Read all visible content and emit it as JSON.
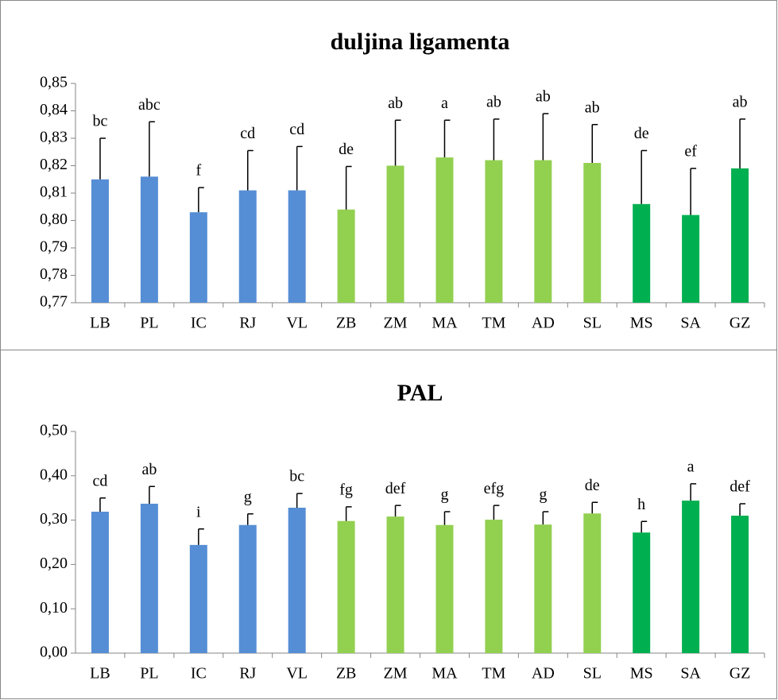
{
  "chart_data": [
    {
      "type": "bar",
      "title": "duljina ligamenta",
      "categories": [
        "LB",
        "PL",
        "IC",
        "RJ",
        "VL",
        "ZB",
        "ZM",
        "MA",
        "TM",
        "AD",
        "SL",
        "MS",
        "SA",
        "GZ"
      ],
      "values": [
        0.815,
        0.816,
        0.803,
        0.811,
        0.811,
        0.804,
        0.82,
        0.823,
        0.822,
        0.822,
        0.821,
        0.806,
        0.802,
        0.819
      ],
      "errors": [
        0.015,
        0.02,
        0.009,
        0.0145,
        0.016,
        0.0157,
        0.0166,
        0.0136,
        0.015,
        0.017,
        0.014,
        0.0195,
        0.017,
        0.018
      ],
      "letters": [
        "bc",
        "abc",
        "f",
        "cd",
        "cd",
        "de",
        "ab",
        "a",
        "ab",
        "ab",
        "ab",
        "de",
        "ef",
        "ab"
      ],
      "colors": [
        "#558ed5",
        "#558ed5",
        "#558ed5",
        "#558ed5",
        "#558ed5",
        "#92d050",
        "#92d050",
        "#92d050",
        "#92d050",
        "#92d050",
        "#92d050",
        "#00b050",
        "#00b050",
        "#00b050"
      ],
      "ylim": [
        0.77,
        0.85
      ],
      "yticks": [
        {
          "value": 0.77,
          "label": "0,77"
        },
        {
          "value": 0.78,
          "label": "0,78"
        },
        {
          "value": 0.79,
          "label": "0,79"
        },
        {
          "value": 0.8,
          "label": "0,80"
        },
        {
          "value": 0.81,
          "label": "0,81"
        },
        {
          "value": 0.82,
          "label": "0,82"
        },
        {
          "value": 0.83,
          "label": "0,83"
        },
        {
          "value": 0.84,
          "label": "0,84"
        },
        {
          "value": 0.85,
          "label": "0,85"
        }
      ]
    },
    {
      "type": "bar",
      "title": "PAL",
      "categories": [
        "LB",
        "PL",
        "IC",
        "RJ",
        "VL",
        "ZB",
        "ZM",
        "MA",
        "TM",
        "AD",
        "SL",
        "MS",
        "SA",
        "GZ"
      ],
      "values": [
        0.319,
        0.337,
        0.244,
        0.289,
        0.328,
        0.298,
        0.308,
        0.289,
        0.301,
        0.29,
        0.315,
        0.272,
        0.344,
        0.31
      ],
      "errors": [
        0.031,
        0.039,
        0.036,
        0.025,
        0.032,
        0.032,
        0.025,
        0.03,
        0.032,
        0.029,
        0.025,
        0.025,
        0.038,
        0.027
      ],
      "letters": [
        "cd",
        "ab",
        "i",
        "g",
        "bc",
        "fg",
        "def",
        "g",
        "efg",
        "g",
        "de",
        "h",
        "a",
        "def"
      ],
      "colors": [
        "#558ed5",
        "#558ed5",
        "#558ed5",
        "#558ed5",
        "#558ed5",
        "#92d050",
        "#92d050",
        "#92d050",
        "#92d050",
        "#92d050",
        "#92d050",
        "#00b050",
        "#00b050",
        "#00b050"
      ],
      "ylim": [
        0,
        0.5
      ],
      "yticks": [
        {
          "value": 0,
          "label": "0,00"
        },
        {
          "value": 0.1,
          "label": "0,10"
        },
        {
          "value": 0.2,
          "label": "0,20"
        },
        {
          "value": 0.3,
          "label": "0,30"
        },
        {
          "value": 0.4,
          "label": "0,40"
        },
        {
          "value": 0.5,
          "label": "0,50"
        }
      ]
    }
  ]
}
